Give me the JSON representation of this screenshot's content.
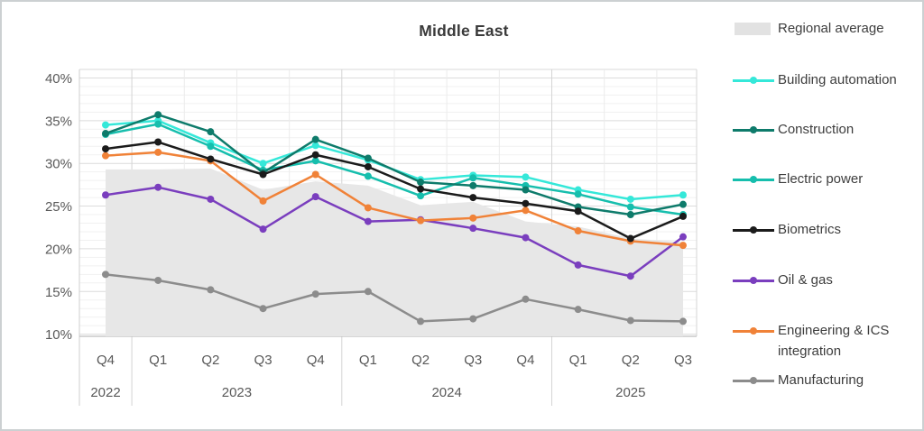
{
  "chart_data": {
    "type": "line",
    "title": "Middle East",
    "y_axis": {
      "unit": "%",
      "min": 10,
      "max": 40,
      "tick_step": 5,
      "tick_labels": [
        "40%",
        "35%",
        "30%",
        "25%",
        "20%",
        "15%",
        "10%"
      ]
    },
    "x_axis": {
      "quarter_labels": [
        "Q4",
        "Q1",
        "Q2",
        "Q3",
        "Q4",
        "Q1",
        "Q2",
        "Q3",
        "Q4",
        "Q1",
        "Q2",
        "Q3"
      ],
      "year_groups": [
        {
          "year": "2022",
          "quarters": 1
        },
        {
          "year": "2023",
          "quarters": 4
        },
        {
          "year": "2024",
          "quarters": 4
        },
        {
          "year": "2025",
          "quarters": 3
        }
      ]
    },
    "regional_average": {
      "name": "Regional average",
      "color": "#e7e7e7",
      "values": [
        29.3,
        29.3,
        29.4,
        26.9,
        27.9,
        27.4,
        25.1,
        25.5,
        23.2,
        22.6,
        21.2,
        20.8
      ]
    },
    "series": [
      {
        "name": "Building automation",
        "color": "#35e8d9",
        "values": [
          34.5,
          35.0,
          32.4,
          30.0,
          32.1,
          30.4,
          28.1,
          28.6,
          28.4,
          26.9,
          25.8,
          26.3
        ]
      },
      {
        "name": "Construction",
        "color": "#0e7b6b",
        "values": [
          33.5,
          35.7,
          33.7,
          28.9,
          32.8,
          30.6,
          27.8,
          27.4,
          26.9,
          24.9,
          24.0,
          25.2
        ]
      },
      {
        "name": "Electric power",
        "color": "#16bead",
        "values": [
          33.4,
          34.6,
          32.0,
          29.2,
          30.3,
          28.5,
          26.2,
          28.3,
          27.4,
          26.4,
          24.9,
          24.0
        ]
      },
      {
        "name": "Biometrics",
        "color": "#1b1b1b",
        "values": [
          31.7,
          32.5,
          30.5,
          28.7,
          31.0,
          29.6,
          27.0,
          26.0,
          25.3,
          24.4,
          21.2,
          23.8
        ]
      },
      {
        "name": "Oil & gas",
        "color": "#7a3ebe",
        "values": [
          26.3,
          27.2,
          25.8,
          22.3,
          26.1,
          23.2,
          23.4,
          22.4,
          21.3,
          18.1,
          16.8,
          21.4
        ]
      },
      {
        "name": "Engineering & ICS integration",
        "color": "#f08238",
        "values": [
          30.9,
          31.3,
          30.3,
          25.6,
          28.7,
          24.8,
          23.3,
          23.6,
          24.5,
          22.1,
          20.9,
          20.4
        ]
      },
      {
        "name": "Manufacturing",
        "color": "#8c8c8c",
        "values": [
          17.0,
          16.3,
          15.2,
          13.0,
          14.7,
          15.0,
          11.5,
          11.8,
          14.1,
          12.9,
          11.6,
          11.5
        ]
      }
    ],
    "legend_order": [
      "Regional average",
      "Building automation",
      "Construction",
      "Electric power",
      "Biometrics",
      "Oil & gas",
      "Engineering & ICS integration",
      "Manufacturing"
    ]
  }
}
